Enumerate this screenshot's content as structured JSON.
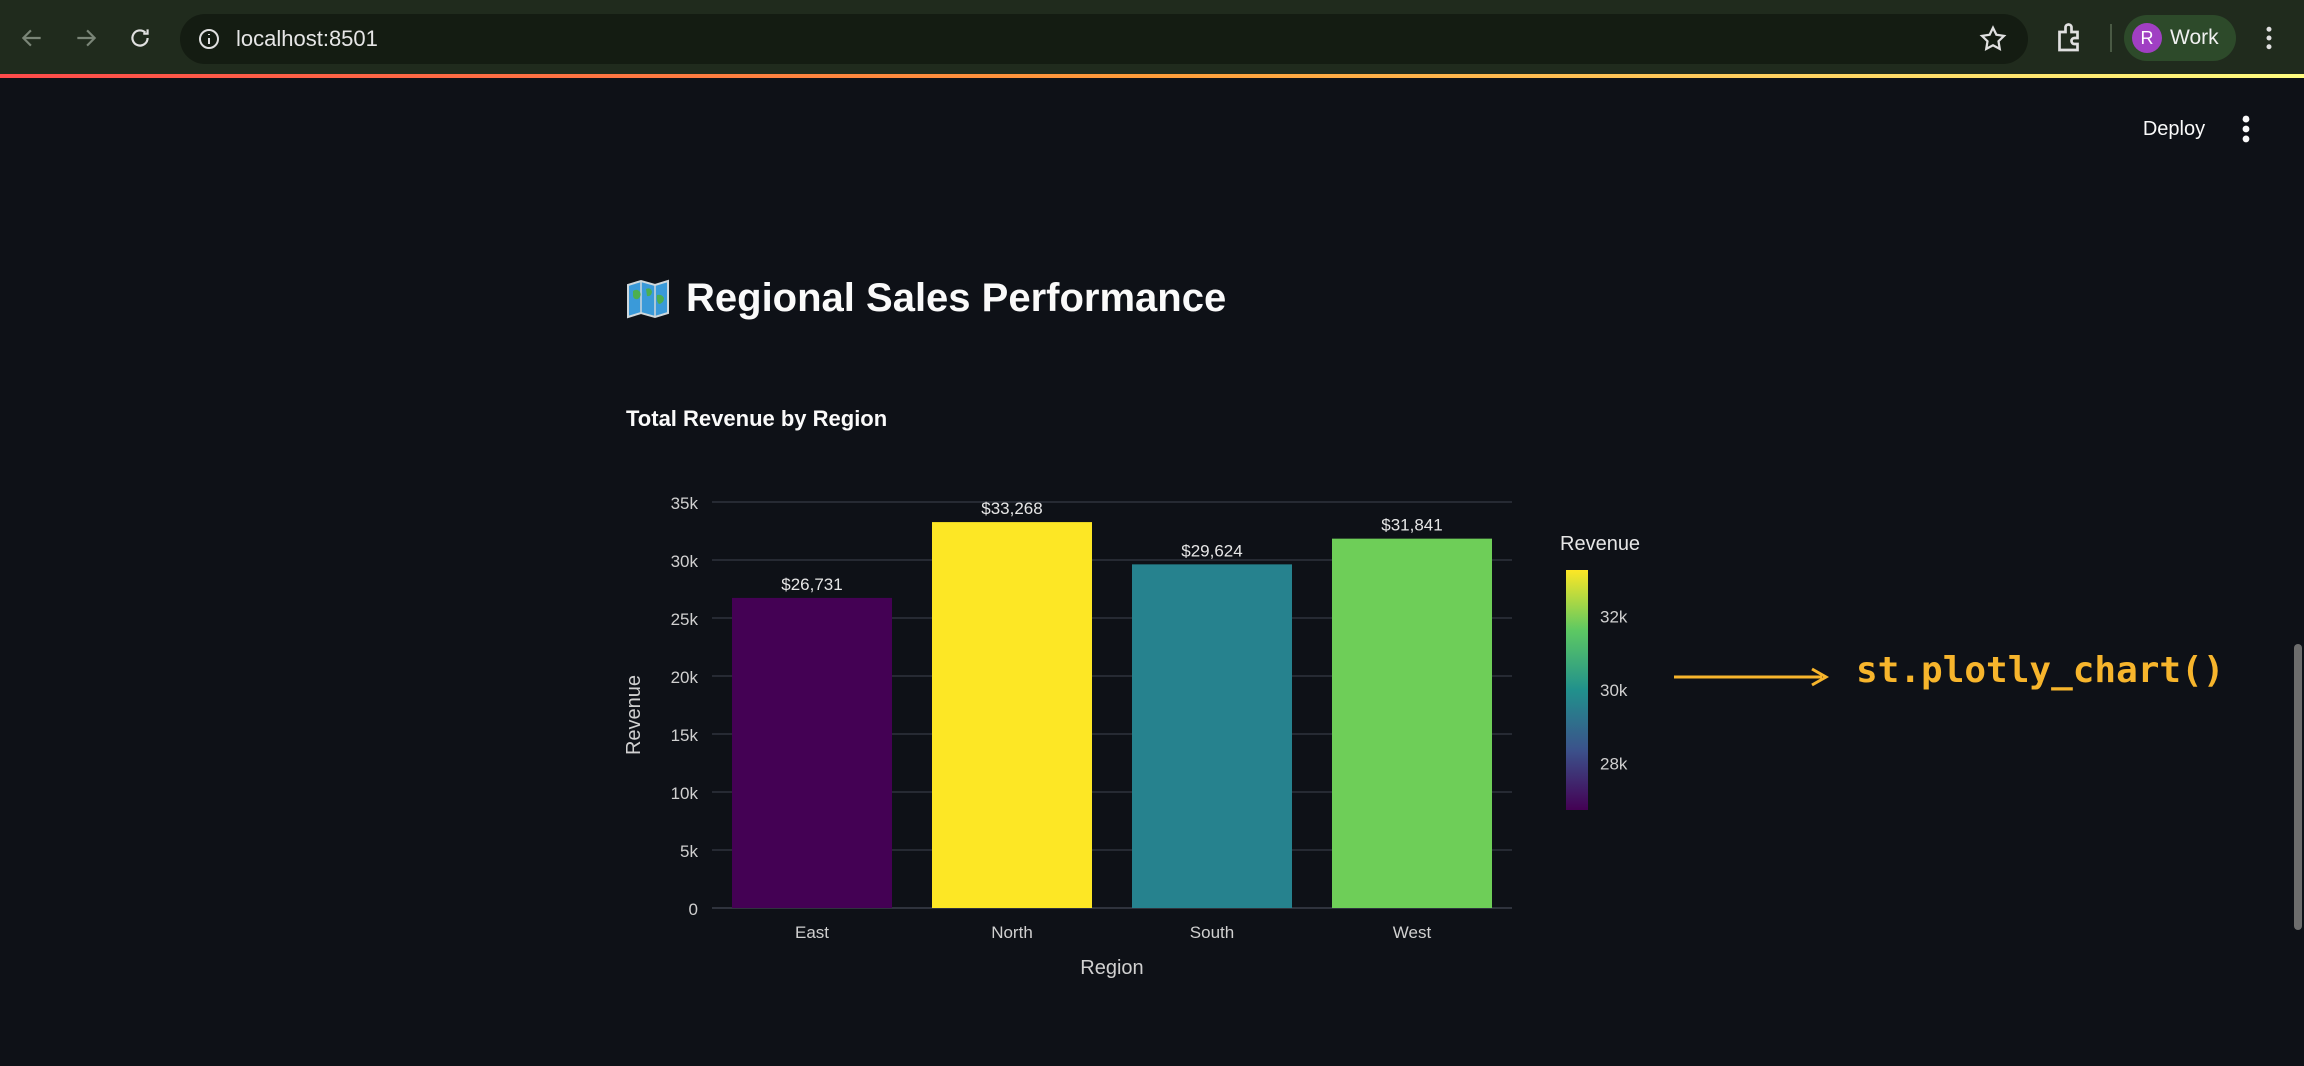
{
  "browser": {
    "url": "localhost:8501",
    "profile_initial": "R",
    "profile_label": "Work"
  },
  "header": {
    "deploy_label": "Deploy"
  },
  "page": {
    "title": "Regional Sales Performance",
    "title_icon": "world-map-icon",
    "subheader": "Total Revenue by Region"
  },
  "annotation": {
    "text": "st.plotly_chart()",
    "color": "#f7b52c"
  },
  "chart_data": {
    "type": "bar",
    "categories": [
      "East",
      "North",
      "South",
      "West"
    ],
    "values": [
      26731,
      33268,
      29624,
      31841
    ],
    "data_labels": [
      "$26,731",
      "$33,268",
      "$29,624",
      "$31,841"
    ],
    "colors": [
      "#440154",
      "#fde725",
      "#26828e",
      "#6ece58"
    ],
    "xlabel": "Region",
    "ylabel": "Revenue",
    "ylim": [
      0,
      35000
    ],
    "yticks": [
      0,
      5000,
      10000,
      15000,
      20000,
      25000,
      30000,
      35000
    ],
    "ytick_labels": [
      "0",
      "5k",
      "10k",
      "15k",
      "20k",
      "25k",
      "30k",
      "35k"
    ],
    "colorbar": {
      "title": "Revenue",
      "range": [
        26731,
        33268
      ],
      "ticks": [
        28000,
        30000,
        32000
      ],
      "tick_labels": [
        "28k",
        "30k",
        "32k"
      ],
      "colors": [
        "#440154",
        "#3b528b",
        "#21918c",
        "#5ec962",
        "#fde725"
      ]
    },
    "grid": true
  }
}
